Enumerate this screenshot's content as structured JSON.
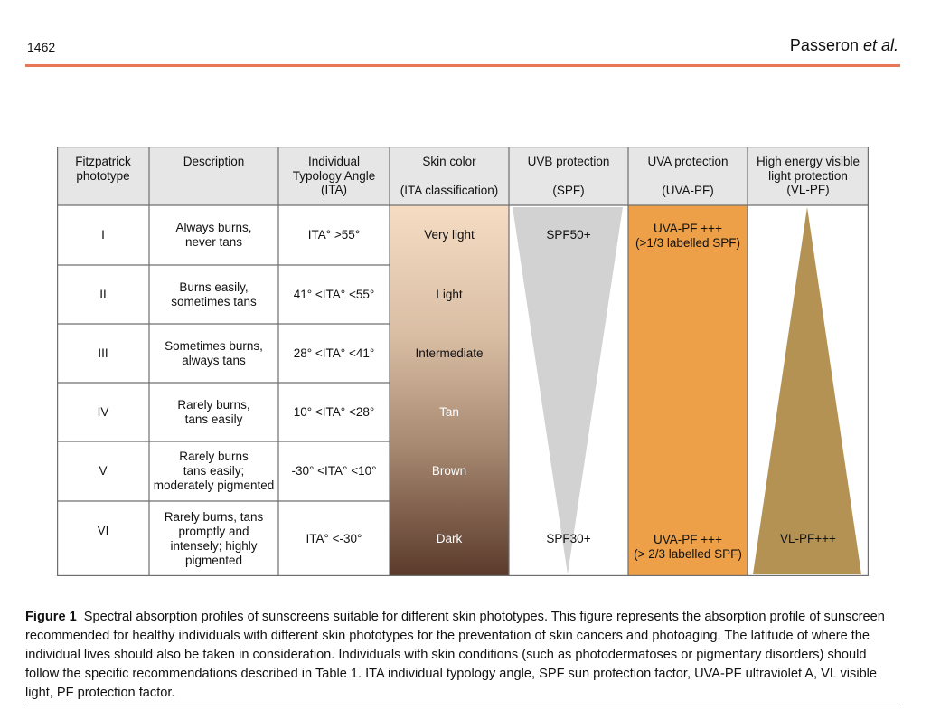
{
  "header": {
    "page_number": "1462",
    "author_name": "Passeron ",
    "author_etal": "et al."
  },
  "table": {
    "columns": [
      "Fitzpatrick\nphototype",
      "Description",
      "Individual\nTypology Angle\n(ITA)",
      "Skin color",
      "UVB protection",
      "UVA protection",
      "High energy visible\nlight protection\n(VL-PF)"
    ],
    "column_subs": {
      "skin_color": "(ITA classification)",
      "uvb": "(SPF)",
      "uva": "(UVA-PF)"
    },
    "rows": [
      {
        "phototype": "I",
        "description": "Always burns,\nnever tans",
        "ita": "ITA° >55°",
        "skin_color": "Very light"
      },
      {
        "phototype": "II",
        "description": "Burns easily,\nsometimes tans",
        "ita": "41° <ITA° <55°",
        "skin_color": "Light"
      },
      {
        "phototype": "III",
        "description": "Sometimes burns,\nalways tans",
        "ita": "28° <ITA° <41°",
        "skin_color": "Intermediate"
      },
      {
        "phototype": "IV",
        "description": "Rarely burns,\ntans easily",
        "ita": "10° <ITA° <28°",
        "skin_color": "Tan"
      },
      {
        "phototype": "V",
        "description": "Rarely burns\ntans easily;\nmoderately pigmented",
        "ita": "-30° <ITA° <10°",
        "skin_color": "Brown"
      },
      {
        "phototype": "VI",
        "description": "Rarely burns, tans\npromptly and\nintensely; highly\npigmented",
        "ita": "ITA° <-30°",
        "skin_color": "Dark"
      }
    ],
    "uvb_top": "SPF50+",
    "uvb_bottom": "SPF30+",
    "uva_top": "UVA-PF +++\n(>1/3 labelled SPF)",
    "uva_bottom": "UVA-PF +++\n(> 2/3 labelled SPF)",
    "vl_bottom": "VL-PF+++"
  },
  "colors": {
    "header_bg": "#e6e6e6",
    "skin_gradient_top": "#f5dcc3",
    "skin_gradient_bottom": "#5b3a2b",
    "uvb_triangle": "#d2d2d2",
    "uva_fill": "#eda048",
    "vl_triangle": "#b39254",
    "accent_rule": "#e8775a"
  },
  "caption": {
    "label": "Figure 1",
    "text": "Spectral absorption profiles of sunscreens suitable for different skin phototypes. This figure represents the absorption profile of sunscreen recommended for healthy individuals with different skin phototypes for the preventation of skin cancers and photoaging. The latitude of where the individual lives should also be taken in consideration. Individuals with skin conditions (such as photodermatoses or pigmentary disorders) should follow the specific recommendations described in Table 1. ITA individual typology angle, SPF sun protection factor, UVA-PF ultraviolet A, VL visible light, PF protection factor."
  }
}
